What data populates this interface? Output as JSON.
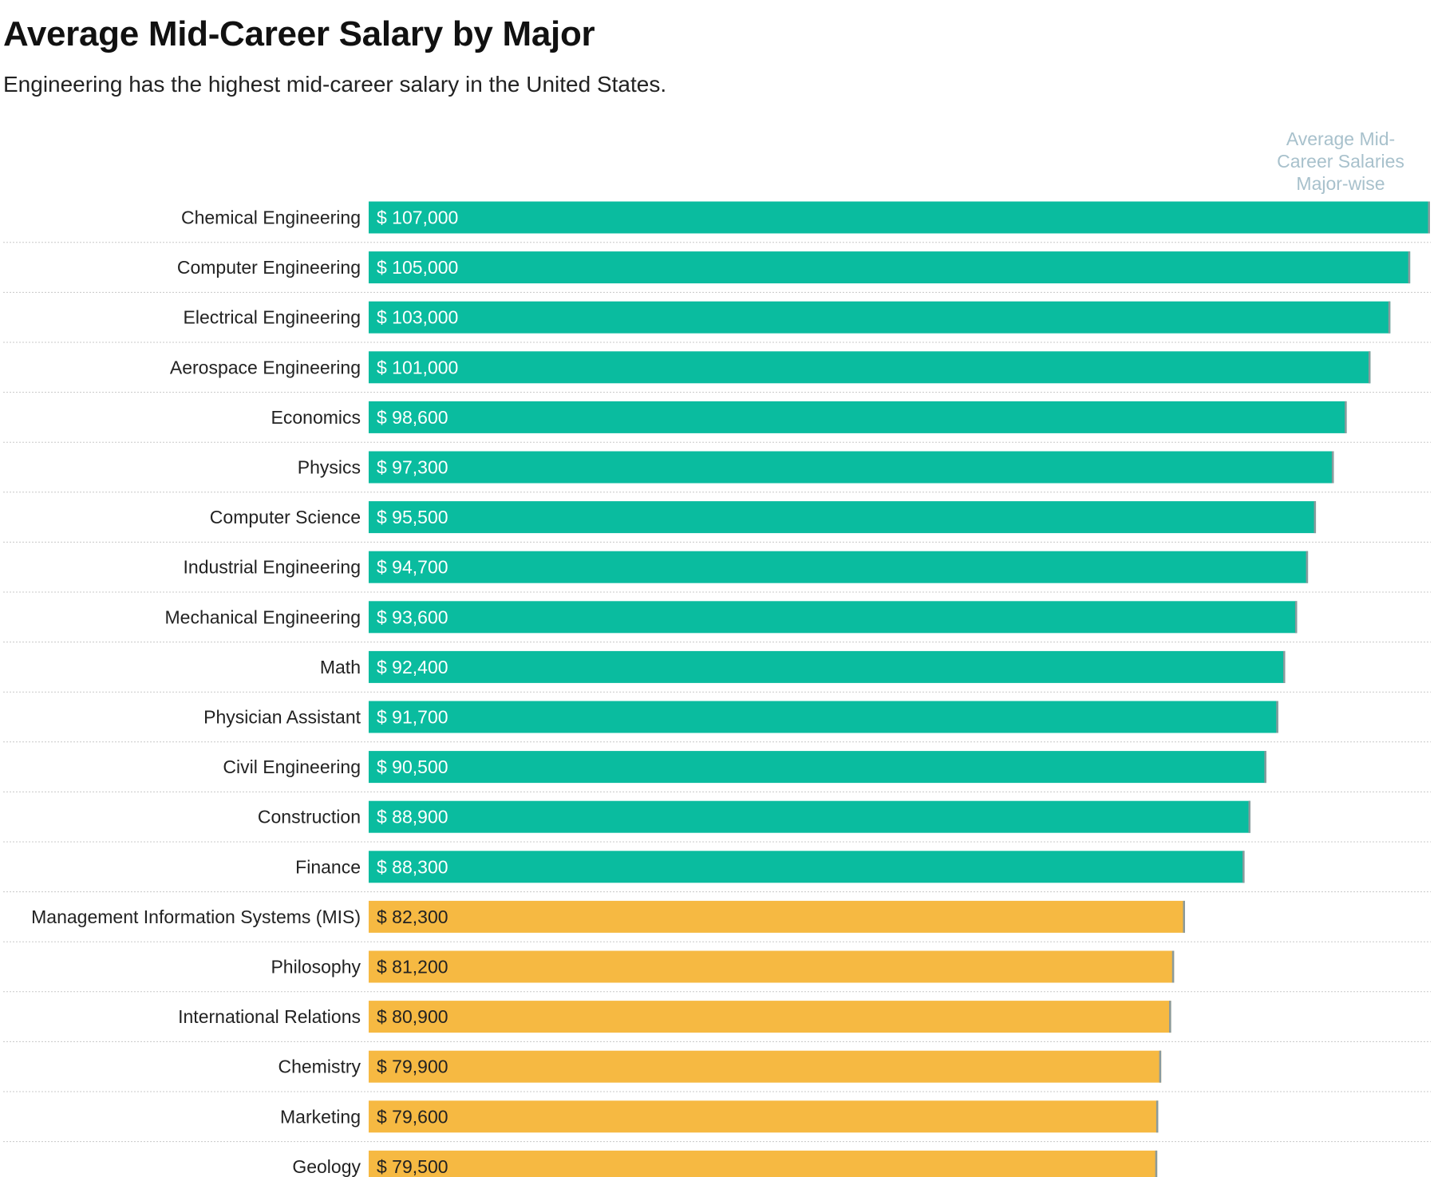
{
  "chart_data": {
    "type": "bar",
    "orientation": "horizontal",
    "title": "Average Mid-Career Salary by Major",
    "subtitle": "Engineering has the highest mid-career salary in the United States.",
    "value_header": "Average Mid-Career Salaries Major-wise",
    "value_prefix": "$ ",
    "xlim": [
      0,
      107000
    ],
    "grid": false,
    "categories": [
      "Chemical Engineering",
      "Computer Engineering",
      "Electrical Engineering",
      "Aerospace Engineering",
      "Economics",
      "Physics",
      "Computer Science",
      "Industrial Engineering",
      "Mechanical Engineering",
      "Math",
      "Physician Assistant",
      "Civil Engineering",
      "Construction",
      "Finance",
      "Management Information Systems (MIS)",
      "Philosophy",
      "International Relations",
      "Chemistry",
      "Marketing",
      "Geology"
    ],
    "values": [
      107000,
      105000,
      103000,
      101000,
      98600,
      97300,
      95500,
      94700,
      93600,
      92400,
      91700,
      90500,
      88900,
      88300,
      82300,
      81200,
      80900,
      79900,
      79600,
      79500
    ],
    "value_labels": [
      "$ 107,000",
      "$ 105,000",
      "$ 103,000",
      "$ 101,000",
      "$ 98,600",
      "$ 97,300",
      "$ 95,500",
      "$ 94,700",
      "$ 93,600",
      "$ 92,400",
      "$ 91,700",
      "$ 90,500",
      "$ 88,900",
      "$ 88,300",
      "$ 82,300",
      "$ 81,200",
      "$ 80,900",
      "$ 79,900",
      "$ 79,600",
      "$ 79,500"
    ],
    "bar_colors": [
      "#0abc9f",
      "#0abc9f",
      "#0abc9f",
      "#0abc9f",
      "#0abc9f",
      "#0abc9f",
      "#0abc9f",
      "#0abc9f",
      "#0abc9f",
      "#0abc9f",
      "#0abc9f",
      "#0abc9f",
      "#0abc9f",
      "#0abc9f",
      "#f6b942",
      "#f6b942",
      "#f6b942",
      "#f6b942",
      "#f6b942",
      "#f6b942"
    ],
    "label_colors": [
      "#ffffff",
      "#ffffff",
      "#ffffff",
      "#ffffff",
      "#ffffff",
      "#ffffff",
      "#ffffff",
      "#ffffff",
      "#ffffff",
      "#ffffff",
      "#ffffff",
      "#ffffff",
      "#ffffff",
      "#ffffff",
      "#222222",
      "#222222",
      "#222222",
      "#222222",
      "#222222",
      "#222222"
    ],
    "bar_end_cap_color": "#8a9a9c",
    "separator_color": "#c8c8c8"
  }
}
